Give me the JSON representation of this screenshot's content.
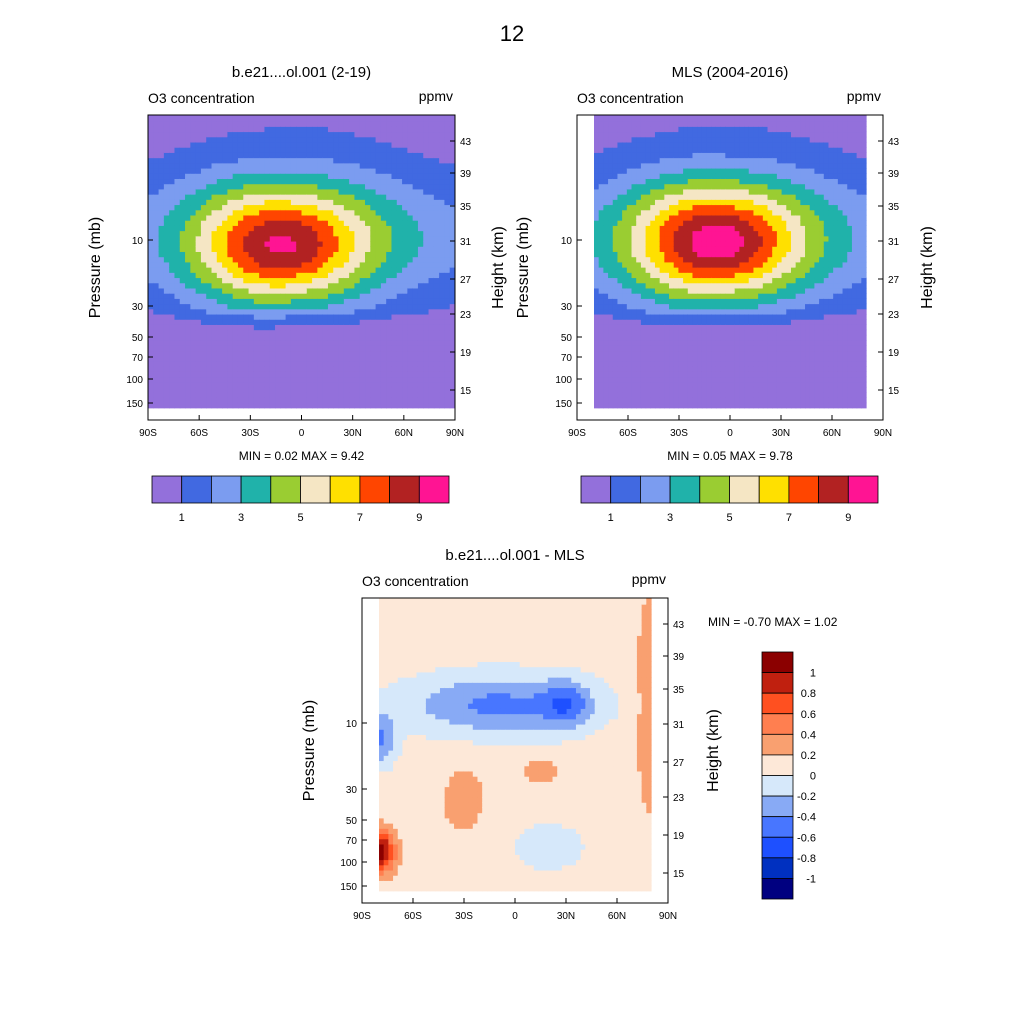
{
  "page_title": "12",
  "chart_data": [
    {
      "type": "heatmap",
      "title": "b.e21....ol.001 (2-19)",
      "left_label": "O3 concentration",
      "right_label": "ppmv",
      "ylabel": "Pressure (mb)",
      "ylabel_right": "Height (km)",
      "x_ticks": [
        "90S",
        "60S",
        "30S",
        "0",
        "30N",
        "60N",
        "90N"
      ],
      "y_ticks": [
        "10",
        "30",
        "50",
        "70",
        "100",
        "150"
      ],
      "y_right_ticks": [
        "43",
        "39",
        "35",
        "31",
        "27",
        "23",
        "19",
        "15"
      ],
      "xlim": [
        -90,
        90
      ],
      "stats": "MIN =   0.02  MAX =   9.42",
      "field": {
        "peak_lat": -15,
        "peak_height_km": 31,
        "peak_value": 9.42,
        "min_value": 0.02
      },
      "colorbar": {
        "orientation": "horizontal",
        "labels": [
          "1",
          "3",
          "5",
          "7",
          "9"
        ],
        "levels": [
          1,
          2,
          3,
          4,
          5,
          6,
          7,
          8,
          9
        ],
        "colors": [
          "#9370db",
          "#4169e1",
          "#7b9cf0",
          "#20b2aa",
          "#9acd32",
          "#f5e6c4",
          "#ffe000",
          "#ff4500",
          "#b22222",
          "#ff1493"
        ]
      }
    },
    {
      "type": "heatmap",
      "title": "MLS (2004-2016)",
      "left_label": "O3 concentration",
      "right_label": "ppmv",
      "ylabel": "Pressure (mb)",
      "ylabel_right": "Height (km)",
      "x_ticks": [
        "90S",
        "60S",
        "30S",
        "0",
        "30N",
        "60N",
        "90N"
      ],
      "y_ticks": [
        "10",
        "30",
        "50",
        "70",
        "100",
        "150"
      ],
      "y_right_ticks": [
        "43",
        "39",
        "35",
        "31",
        "27",
        "23",
        "19",
        "15"
      ],
      "xlim": [
        -90,
        90
      ],
      "data_lat_range": [
        -80,
        80
      ],
      "stats": "MIN =   0.05  MAX =   9.78",
      "field": {
        "peak_lat": -10,
        "peak_height_km": 31.5,
        "peak_value": 9.78,
        "min_value": 0.05
      },
      "colorbar": {
        "orientation": "horizontal",
        "labels": [
          "1",
          "3",
          "5",
          "7",
          "9"
        ],
        "levels": [
          1,
          2,
          3,
          4,
          5,
          6,
          7,
          8,
          9
        ],
        "colors": [
          "#9370db",
          "#4169e1",
          "#7b9cf0",
          "#20b2aa",
          "#9acd32",
          "#f5e6c4",
          "#ffe000",
          "#ff4500",
          "#b22222",
          "#ff1493"
        ]
      }
    },
    {
      "type": "heatmap",
      "title": "b.e21....ol.001 - MLS",
      "left_label": "O3 concentration",
      "right_label": "ppmv",
      "ylabel": "Pressure (mb)",
      "ylabel_right": "Height (km)",
      "x_ticks": [
        "90S",
        "60S",
        "30S",
        "0",
        "30N",
        "60N",
        "90N"
      ],
      "y_ticks": [
        "10",
        "30",
        "50",
        "70",
        "100",
        "150"
      ],
      "y_right_ticks": [
        "43",
        "39",
        "35",
        "31",
        "27",
        "23",
        "19",
        "15"
      ],
      "xlim": [
        -90,
        90
      ],
      "data_lat_range": [
        -80,
        80
      ],
      "stats": "MIN =  -0.70  MAX =   1.02",
      "field": {
        "min_value": -0.7,
        "max_value": 1.02
      },
      "colorbar": {
        "orientation": "vertical",
        "labels": [
          "1",
          "0.8",
          "0.6",
          "0.4",
          "0.2",
          "0",
          "-0.2",
          "-0.4",
          "-0.6",
          "-0.8",
          "-1"
        ],
        "levels": [
          1,
          0.8,
          0.6,
          0.4,
          0.2,
          0,
          -0.2,
          -0.4,
          -0.6,
          -0.8,
          -1
        ],
        "colors": [
          "#8b0000",
          "#c0200f",
          "#ff5020",
          "#ff7f50",
          "#f9a070",
          "#fde8d8",
          "#d6e8fa",
          "#88aaf5",
          "#4876ff",
          "#1e50ff",
          "#0030c0",
          "#000080"
        ]
      }
    }
  ]
}
